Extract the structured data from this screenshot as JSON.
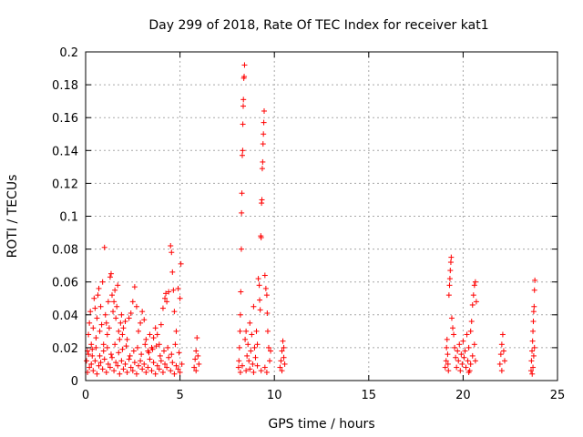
{
  "chart_data": {
    "type": "scatter",
    "title": "Day 299 of 2018, Rate Of TEC Index for receiver kat1",
    "xlabel": "GPS time / hours",
    "ylabel": "ROTI / TECUs",
    "xlim": [
      0,
      25
    ],
    "ylim": [
      0,
      0.2
    ],
    "x_ticks": [
      0,
      5,
      10,
      15,
      20,
      25
    ],
    "x_tick_labels": [
      "0",
      "5",
      "10",
      "15",
      "20",
      "25"
    ],
    "y_ticks": [
      0,
      0.02,
      0.04,
      0.06,
      0.08,
      0.1,
      0.12,
      0.14,
      0.16,
      0.18,
      0.2
    ],
    "y_tick_labels": [
      "0",
      "0.02",
      "0.04",
      "0.06",
      "0.08",
      "0.1",
      "0.12",
      "0.14",
      "0.16",
      "0.18",
      "0.2"
    ],
    "grid": true,
    "marker": "+",
    "color": "#ff0000",
    "series": [
      {
        "name": "kat1",
        "points": [
          [
            0.05,
            0.012
          ],
          [
            0.1,
            0.018
          ],
          [
            0.15,
            0.028
          ],
          [
            0.2,
            0.035
          ],
          [
            0.25,
            0.042
          ],
          [
            0.3,
            0.022
          ],
          [
            0.35,
            0.015
          ],
          [
            0.4,
            0.032
          ],
          [
            0.45,
            0.05
          ],
          [
            0.5,
            0.044
          ],
          [
            0.55,
            0.026
          ],
          [
            0.6,
            0.038
          ],
          [
            0.65,
            0.052
          ],
          [
            0.7,
            0.056
          ],
          [
            0.75,
            0.03
          ],
          [
            0.8,
            0.045
          ],
          [
            0.85,
            0.034
          ],
          [
            0.9,
            0.06
          ],
          [
            0.95,
            0.022
          ],
          [
            1.0,
            0.081
          ],
          [
            1.05,
            0.04
          ],
          [
            1.1,
            0.035
          ],
          [
            1.15,
            0.028
          ],
          [
            1.2,
            0.048
          ],
          [
            1.25,
            0.032
          ],
          [
            1.3,
            0.063
          ],
          [
            1.35,
            0.065
          ],
          [
            1.4,
            0.052
          ],
          [
            1.45,
            0.042
          ],
          [
            1.5,
            0.048
          ],
          [
            1.55,
            0.055
          ],
          [
            1.6,
            0.038
          ],
          [
            1.65,
            0.045
          ],
          [
            1.7,
            0.058
          ],
          [
            1.75,
            0.03
          ],
          [
            1.8,
            0.025
          ],
          [
            1.85,
            0.035
          ],
          [
            1.9,
            0.04
          ],
          [
            1.95,
            0.028
          ],
          [
            2.0,
            0.032
          ],
          [
            2.1,
            0.036
          ],
          [
            2.2,
            0.025
          ],
          [
            2.3,
            0.038
          ],
          [
            2.4,
            0.041
          ],
          [
            2.5,
            0.048
          ],
          [
            2.6,
            0.057
          ],
          [
            2.7,
            0.045
          ],
          [
            2.8,
            0.03
          ],
          [
            2.9,
            0.035
          ],
          [
            3.0,
            0.042
          ],
          [
            3.1,
            0.037
          ],
          [
            3.2,
            0.025
          ],
          [
            3.3,
            0.018
          ],
          [
            3.4,
            0.028
          ],
          [
            3.5,
            0.02
          ],
          [
            3.6,
            0.026
          ],
          [
            3.7,
            0.032
          ],
          [
            3.8,
            0.028
          ],
          [
            3.9,
            0.022
          ],
          [
            4.0,
            0.034
          ],
          [
            4.1,
            0.044
          ],
          [
            4.2,
            0.05
          ],
          [
            4.25,
            0.053
          ],
          [
            4.3,
            0.048
          ],
          [
            4.4,
            0.054
          ],
          [
            4.5,
            0.082
          ],
          [
            4.55,
            0.078
          ],
          [
            4.6,
            0.066
          ],
          [
            4.65,
            0.055
          ],
          [
            4.7,
            0.042
          ],
          [
            4.8,
            0.03
          ],
          [
            4.9,
            0.056
          ],
          [
            5.0,
            0.05
          ],
          [
            5.05,
            0.071
          ],
          [
            0.1,
            0.005
          ],
          [
            0.2,
            0.008
          ],
          [
            0.3,
            0.01
          ],
          [
            0.4,
            0.006
          ],
          [
            0.5,
            0.012
          ],
          [
            0.6,
            0.004
          ],
          [
            0.7,
            0.009
          ],
          [
            0.8,
            0.011
          ],
          [
            0.9,
            0.007
          ],
          [
            1.0,
            0.013
          ],
          [
            1.1,
            0.005
          ],
          [
            1.2,
            0.01
          ],
          [
            1.3,
            0.008
          ],
          [
            1.4,
            0.014
          ],
          [
            1.5,
            0.006
          ],
          [
            1.6,
            0.011
          ],
          [
            1.7,
            0.009
          ],
          [
            1.8,
            0.004
          ],
          [
            1.9,
            0.012
          ],
          [
            2.0,
            0.007
          ],
          [
            2.1,
            0.01
          ],
          [
            2.2,
            0.005
          ],
          [
            2.3,
            0.013
          ],
          [
            2.4,
            0.008
          ],
          [
            2.5,
            0.006
          ],
          [
            2.6,
            0.011
          ],
          [
            2.7,
            0.004
          ],
          [
            2.8,
            0.009
          ],
          [
            2.9,
            0.012
          ],
          [
            3.0,
            0.007
          ],
          [
            3.1,
            0.01
          ],
          [
            3.2,
            0.005
          ],
          [
            3.3,
            0.008
          ],
          [
            3.4,
            0.013
          ],
          [
            3.5,
            0.006
          ],
          [
            3.6,
            0.011
          ],
          [
            3.7,
            0.004
          ],
          [
            3.8,
            0.009
          ],
          [
            3.9,
            0.007
          ],
          [
            4.0,
            0.012
          ],
          [
            4.1,
            0.005
          ],
          [
            4.2,
            0.01
          ],
          [
            4.3,
            0.008
          ],
          [
            4.4,
            0.014
          ],
          [
            4.5,
            0.006
          ],
          [
            4.6,
            0.011
          ],
          [
            4.7,
            0.004
          ],
          [
            4.8,
            0.009
          ],
          [
            4.9,
            0.007
          ],
          [
            5.0,
            0.005
          ],
          [
            5.1,
            0.01
          ],
          [
            0.15,
            0.016
          ],
          [
            0.35,
            0.019
          ],
          [
            0.55,
            0.02
          ],
          [
            0.75,
            0.015
          ],
          [
            0.95,
            0.018
          ],
          [
            1.15,
            0.02
          ],
          [
            1.35,
            0.016
          ],
          [
            1.55,
            0.022
          ],
          [
            1.75,
            0.017
          ],
          [
            1.95,
            0.019
          ],
          [
            2.15,
            0.021
          ],
          [
            2.35,
            0.015
          ],
          [
            2.55,
            0.018
          ],
          [
            2.75,
            0.02
          ],
          [
            2.95,
            0.016
          ],
          [
            3.15,
            0.022
          ],
          [
            3.35,
            0.017
          ],
          [
            3.55,
            0.019
          ],
          [
            3.75,
            0.021
          ],
          [
            3.95,
            0.015
          ],
          [
            4.15,
            0.018
          ],
          [
            4.35,
            0.02
          ],
          [
            4.55,
            0.016
          ],
          [
            4.75,
            0.022
          ],
          [
            4.95,
            0.017
          ],
          [
            5.75,
            0.008
          ],
          [
            5.8,
            0.013
          ],
          [
            5.85,
            0.018
          ],
          [
            5.9,
            0.026
          ],
          [
            5.95,
            0.015
          ],
          [
            6.0,
            0.01
          ],
          [
            5.85,
            0.006
          ],
          [
            8.1,
            0.008
          ],
          [
            8.12,
            0.012
          ],
          [
            8.15,
            0.02
          ],
          [
            8.18,
            0.03
          ],
          [
            8.2,
            0.04
          ],
          [
            8.22,
            0.054
          ],
          [
            8.25,
            0.08
          ],
          [
            8.26,
            0.102
          ],
          [
            8.28,
            0.114
          ],
          [
            8.3,
            0.137
          ],
          [
            8.32,
            0.14
          ],
          [
            8.33,
            0.156
          ],
          [
            8.35,
            0.167
          ],
          [
            8.36,
            0.171
          ],
          [
            8.38,
            0.184
          ],
          [
            8.4,
            0.185
          ],
          [
            8.42,
            0.192
          ],
          [
            8.45,
            0.025
          ],
          [
            8.5,
            0.03
          ],
          [
            8.55,
            0.015
          ],
          [
            8.6,
            0.022
          ],
          [
            8.65,
            0.012
          ],
          [
            8.7,
            0.035
          ],
          [
            8.75,
            0.018
          ],
          [
            8.8,
            0.028
          ],
          [
            8.85,
            0.01
          ],
          [
            8.9,
            0.045
          ],
          [
            8.95,
            0.02
          ],
          [
            9.0,
            0.014
          ],
          [
            9.05,
            0.03
          ],
          [
            9.1,
            0.022
          ],
          [
            9.15,
            0.062
          ],
          [
            9.2,
            0.058
          ],
          [
            9.22,
            0.049
          ],
          [
            9.25,
            0.043
          ],
          [
            9.28,
            0.088
          ],
          [
            9.3,
            0.087
          ],
          [
            9.32,
            0.108
          ],
          [
            9.34,
            0.11
          ],
          [
            9.36,
            0.129
          ],
          [
            9.38,
            0.133
          ],
          [
            9.4,
            0.144
          ],
          [
            9.42,
            0.15
          ],
          [
            9.44,
            0.157
          ],
          [
            9.46,
            0.164
          ],
          [
            9.5,
            0.064
          ],
          [
            9.55,
            0.056
          ],
          [
            9.6,
            0.052
          ],
          [
            9.62,
            0.041
          ],
          [
            9.65,
            0.03
          ],
          [
            9.7,
            0.02
          ],
          [
            9.75,
            0.012
          ],
          [
            9.8,
            0.018
          ],
          [
            9.5,
            0.008
          ],
          [
            9.6,
            0.005
          ],
          [
            9.3,
            0.006
          ],
          [
            9.1,
            0.009
          ],
          [
            8.9,
            0.005
          ],
          [
            8.7,
            0.007
          ],
          [
            8.5,
            0.006
          ],
          [
            8.3,
            0.009
          ],
          [
            8.2,
            0.005
          ],
          [
            10.3,
            0.008
          ],
          [
            10.35,
            0.012
          ],
          [
            10.4,
            0.018
          ],
          [
            10.45,
            0.024
          ],
          [
            10.5,
            0.014
          ],
          [
            10.55,
            0.01
          ],
          [
            10.4,
            0.006
          ],
          [
            10.5,
            0.02
          ],
          [
            19.05,
            0.008
          ],
          [
            19.1,
            0.012
          ],
          [
            19.12,
            0.02
          ],
          [
            19.15,
            0.025
          ],
          [
            19.18,
            0.016
          ],
          [
            19.2,
            0.01
          ],
          [
            19.22,
            0.006
          ],
          [
            19.25,
            0.052
          ],
          [
            19.28,
            0.058
          ],
          [
            19.3,
            0.062
          ],
          [
            19.32,
            0.067
          ],
          [
            19.35,
            0.072
          ],
          [
            19.37,
            0.075
          ],
          [
            19.4,
            0.038
          ],
          [
            19.45,
            0.032
          ],
          [
            19.5,
            0.028
          ],
          [
            19.55,
            0.02
          ],
          [
            19.6,
            0.014
          ],
          [
            19.65,
            0.008
          ],
          [
            19.7,
            0.018
          ],
          [
            19.75,
            0.012
          ],
          [
            19.8,
            0.022
          ],
          [
            19.85,
            0.006
          ],
          [
            19.9,
            0.016
          ],
          [
            19.95,
            0.01
          ],
          [
            20.0,
            0.024
          ],
          [
            20.05,
            0.014
          ],
          [
            20.1,
            0.018
          ],
          [
            20.15,
            0.008
          ],
          [
            20.2,
            0.028
          ],
          [
            20.25,
            0.012
          ],
          [
            20.3,
            0.02
          ],
          [
            20.35,
            0.006
          ],
          [
            20.4,
            0.03
          ],
          [
            20.45,
            0.036
          ],
          [
            20.5,
            0.046
          ],
          [
            20.55,
            0.052
          ],
          [
            20.6,
            0.058
          ],
          [
            20.65,
            0.06
          ],
          [
            20.7,
            0.048
          ],
          [
            20.6,
            0.022
          ],
          [
            20.5,
            0.015
          ],
          [
            20.4,
            0.01
          ],
          [
            20.3,
            0.005
          ],
          [
            20.65,
            0.012
          ],
          [
            21.95,
            0.01
          ],
          [
            22.0,
            0.016
          ],
          [
            22.05,
            0.022
          ],
          [
            22.1,
            0.028
          ],
          [
            22.15,
            0.018
          ],
          [
            22.2,
            0.012
          ],
          [
            22.05,
            0.006
          ],
          [
            23.6,
            0.006
          ],
          [
            23.62,
            0.012
          ],
          [
            23.65,
            0.018
          ],
          [
            23.68,
            0.024
          ],
          [
            23.7,
            0.03
          ],
          [
            23.72,
            0.036
          ],
          [
            23.74,
            0.042
          ],
          [
            23.76,
            0.045
          ],
          [
            23.78,
            0.055
          ],
          [
            23.8,
            0.061
          ],
          [
            23.74,
            0.015
          ],
          [
            23.7,
            0.008
          ],
          [
            23.66,
            0.004
          ],
          [
            23.78,
            0.02
          ]
        ]
      }
    ]
  }
}
